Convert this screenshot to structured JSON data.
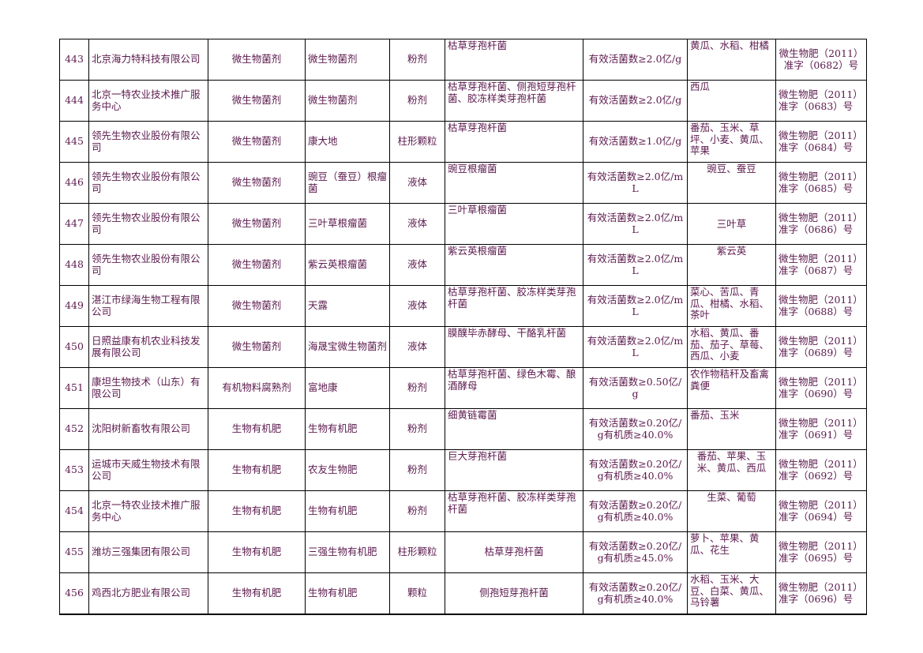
{
  "rows": [
    {
      "no": "443",
      "company": "北京海力特科技有限公司",
      "category": "微生物菌剂",
      "product": "微生物菌剂",
      "form": "粉剂",
      "strain": "枯草芽孢杆菌",
      "spec": "有效活菌数≥2.0亿/g",
      "crop": "黄瓜、水稻、柑橘",
      "reg": "微生物肥（2011）准字（0682）号"
    },
    {
      "no": "444",
      "company": "北京一特农业技术推广服务中心",
      "category": "微生物菌剂",
      "product": "微生物菌剂",
      "form": "粉剂",
      "strain": "枯草芽孢杆菌、侧孢短芽孢杆菌、胶冻样类芽孢杆菌",
      "spec": "有效活菌数≥2.0亿/g",
      "crop": "西瓜",
      "reg": "微生物肥（2011）准字（0683）号"
    },
    {
      "no": "445",
      "company": "领先生物农业股份有限公司",
      "category": "微生物菌剂",
      "product": "康大地",
      "form": "柱形颗粒",
      "strain": "枯草芽孢杆菌",
      "spec": "有效活菌数≥1.0亿/g",
      "crop": "番茄、玉米、草坪、小麦、黄瓜、苹果",
      "reg": "微生物肥（2011）准字（0684）号"
    },
    {
      "no": "446",
      "company": "领先生物农业股份有限公司",
      "category": "微生物菌剂",
      "product": "豌豆（蚕豆）根瘤菌",
      "form": "液体",
      "strain": "豌豆根瘤菌",
      "spec": "有效活菌数≥2.0亿/mL",
      "crop": "豌豆、蚕豆",
      "reg": "微生物肥（2011）准字（0685）号"
    },
    {
      "no": "447",
      "company": "领先生物农业股份有限公司",
      "category": "微生物菌剂",
      "product": "三叶草根瘤菌",
      "form": "液体",
      "strain": "三叶草根瘤菌",
      "spec": "有效活菌数≥2.0亿/mL",
      "crop": "三叶草",
      "reg": "微生物肥（2011）准字（0686）号"
    },
    {
      "no": "448",
      "company": "领先生物农业股份有限公司",
      "category": "微生物菌剂",
      "product": "紫云英根瘤菌",
      "form": "液体",
      "strain": "紫云英根瘤菌",
      "spec": "有效活菌数≥2.0亿/mL",
      "crop": "紫云英",
      "reg": "微生物肥（2011）准字（0687）号"
    },
    {
      "no": "449",
      "company": "湛江市绿海生物工程有限公司",
      "category": "微生物菌剂",
      "product": "天露",
      "form": "液体",
      "strain": "枯草芽孢杆菌、胶冻样类芽孢杆菌",
      "spec": "有效活菌数≥2.0亿/mL",
      "crop": "菜心、苦瓜、青瓜、柑橘、水稻、茶叶",
      "reg": "微生物肥（2011）准字（0688）号"
    },
    {
      "no": "450",
      "company": "日照益康有机农业科技发展有限公司",
      "category": "微生物菌剂",
      "product": "海晟宝微生物菌剂",
      "form": "液体",
      "strain": "膜醭毕赤酵母、干酪乳杆菌",
      "spec": "有效活菌数≥2.0亿/mL",
      "crop": "水稻、黄瓜、番茄、茄子、草莓、西瓜、小麦",
      "reg": "微生物肥（2011）准字（0689）号"
    },
    {
      "no": "451",
      "company": "康坦生物技术（山东）有限公司",
      "category": "有机物料腐熟剂",
      "product": "富地康",
      "form": "粉剂",
      "strain": "枯草芽孢杆菌、绿色木霉、酿酒酵母",
      "spec": "有效活菌数≥0.50亿/g",
      "crop": "农作物秸秆及畜禽粪便",
      "reg": "微生物肥（2011）准字（0690）号"
    },
    {
      "no": "452",
      "company": "沈阳树新畜牧有限公司",
      "category": "生物有机肥",
      "product": "生物有机肥",
      "form": "粉剂",
      "strain": "细黄链霉菌",
      "spec": "有效活菌数≥0.20亿/g有机质≥40.0%",
      "crop": "番茄、玉米",
      "reg": "微生物肥（2011）准字（0691）号"
    },
    {
      "no": "453",
      "company": "运城市天威生物技术有限公司",
      "category": "生物有机肥",
      "product": "农友生物肥",
      "form": "粉剂",
      "strain": "巨大芽孢杆菌",
      "spec": "有效活菌数≥0.20亿/g有机质≥40.0%",
      "crop": "番茄、苹果、玉米、黄瓜、西瓜",
      "reg": "微生物肥（2011）准字（0692）号"
    },
    {
      "no": "454",
      "company": "北京一特农业技术推广服务中心",
      "category": "生物有机肥",
      "product": "生物有机肥",
      "form": "粉剂",
      "strain": "枯草芽孢杆菌、胶冻样类芽孢杆菌",
      "spec": "有效活菌数≥0.20亿/g有机质≥40.0%",
      "crop": "生菜、葡萄",
      "reg": "微生物肥（2011）准字（0694）号"
    },
    {
      "no": "455",
      "company": "潍坊三强集团有限公司",
      "category": "生物有机肥",
      "product": "三强生物有机肥",
      "form": "柱形颗粒",
      "strain": "枯草芽孢杆菌",
      "spec": "有效活菌数≥0.20亿/g有机质≥45.0%",
      "crop": "萝卜、苹果、黄瓜、花生",
      "reg": "微生物肥（2011）准字（0695）号"
    },
    {
      "no": "456",
      "company": "鸡西北方肥业有限公司",
      "category": "生物有机肥",
      "product": "生物有机肥",
      "form": "颗粒",
      "strain": "侧孢短芽孢杆菌",
      "spec": "有效活菌数≥0.20亿/g有机质≥40.0%",
      "crop": "水稻、玉米、大豆、白菜、黄瓜、马铃薯",
      "reg": "微生物肥（2011）准字（0696）号"
    }
  ]
}
